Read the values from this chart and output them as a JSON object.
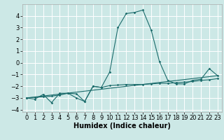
{
  "xlabel": "Humidex (Indice chaleur)",
  "background_color": "#cce8e6",
  "grid_color": "#ffffff",
  "line_color": "#1a6b6b",
  "xlim": [
    -0.5,
    23.5
  ],
  "ylim": [
    -4.2,
    5.0
  ],
  "yticks": [
    -4,
    -3,
    -2,
    -1,
    0,
    1,
    2,
    3,
    4
  ],
  "xticks": [
    0,
    1,
    2,
    3,
    4,
    5,
    6,
    7,
    8,
    9,
    10,
    11,
    12,
    13,
    14,
    15,
    16,
    17,
    18,
    19,
    20,
    21,
    22,
    23
  ],
  "series1_x": [
    0,
    1,
    2,
    3,
    4,
    5,
    6,
    7,
    8,
    9,
    10,
    11,
    12,
    13,
    14,
    15,
    16,
    17,
    18,
    19,
    20,
    21,
    22,
    23
  ],
  "series1_y": [
    -3.0,
    -3.1,
    -2.7,
    -3.4,
    -2.6,
    -2.6,
    -3.0,
    -3.3,
    -2.0,
    -2.1,
    -0.8,
    3.0,
    4.2,
    4.3,
    4.5,
    2.8,
    0.1,
    -1.5,
    -1.8,
    -1.8,
    -1.5,
    -1.4,
    -0.5,
    -1.1
  ],
  "series2_x": [
    0,
    1,
    2,
    3,
    4,
    5,
    6,
    7,
    8,
    9,
    10,
    11,
    12,
    13,
    14,
    15,
    16,
    17,
    18,
    19,
    20,
    21,
    22,
    23
  ],
  "series2_y": [
    -3.0,
    -2.95,
    -2.9,
    -2.85,
    -2.75,
    -2.6,
    -2.65,
    -3.3,
    -2.0,
    -2.1,
    -1.95,
    -1.9,
    -1.85,
    -1.85,
    -1.85,
    -1.8,
    -1.75,
    -1.75,
    -1.7,
    -1.65,
    -1.6,
    -1.5,
    -1.45,
    -1.35
  ],
  "series3_x": [
    0,
    23
  ],
  "series3_y": [
    -3.0,
    -1.1
  ],
  "xlabel_fontsize": 7,
  "tick_fontsize": 6
}
